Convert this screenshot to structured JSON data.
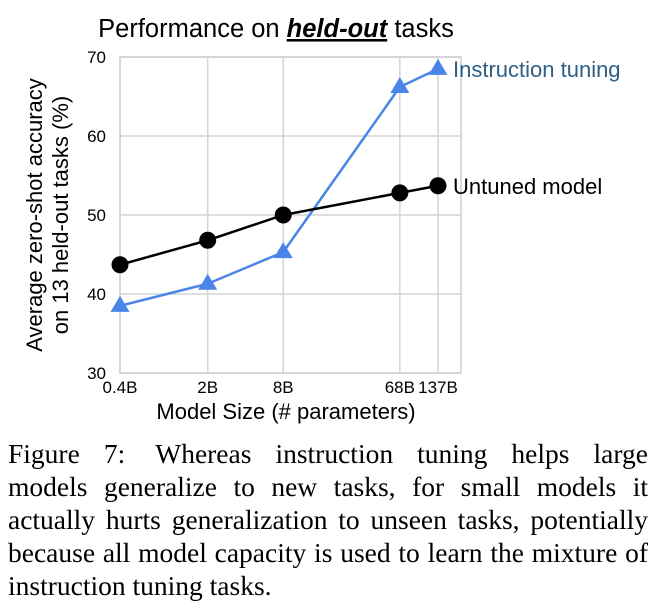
{
  "chart_data": {
    "type": "line",
    "title_parts": [
      "Performance on ",
      "held-out",
      " tasks"
    ],
    "xlabel": "Model Size (# parameters)",
    "ylabel_lines": [
      "Average zero-shot accuracy",
      "on 13 held-out tasks (%)"
    ],
    "x": [
      0.4,
      2,
      8,
      68,
      137
    ],
    "categories": [
      "0.4B",
      "2B",
      "8B",
      "68B",
      "137B"
    ],
    "x_scale": "log",
    "ylim": [
      30,
      70
    ],
    "yticks": [
      30,
      40,
      50,
      60,
      70
    ],
    "grid": true,
    "series": [
      {
        "name": "Instruction tuning",
        "color": "#4a86e8",
        "label_color": "#2f5f86",
        "marker": "triangle",
        "values": [
          38.5,
          41.3,
          45.3,
          66.2,
          68.5
        ]
      },
      {
        "name": "Untuned model",
        "color": "#000000",
        "label_color": "#000000",
        "marker": "circle",
        "values": [
          43.7,
          46.8,
          50.0,
          52.8,
          53.7
        ]
      }
    ]
  },
  "caption": {
    "label": "Figure 7:",
    "text": "Whereas instruction tuning helps large models generalize to new tasks, for small models it actually hurts generalization to unseen tasks, potentially because all model capacity is used to learn the mixture of instruction tuning tasks."
  }
}
